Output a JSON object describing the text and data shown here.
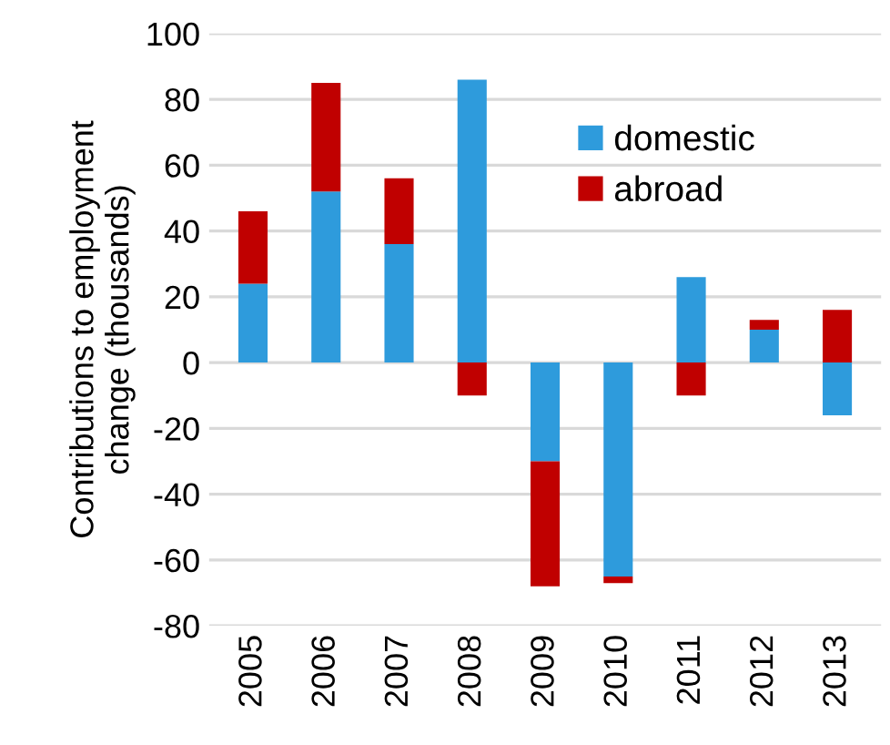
{
  "chart_data": {
    "type": "bar",
    "stacked": true,
    "ylabel": "Contributions to employment\nchange (thousands)",
    "categories": [
      "2005",
      "2006",
      "2007",
      "2008",
      "2009",
      "2010",
      "2011",
      "2012",
      "2013"
    ],
    "series": [
      {
        "name": "domestic",
        "color": "#2e9bdc",
        "values": [
          24,
          52,
          36,
          86,
          -30,
          -65,
          26,
          10,
          -16
        ]
      },
      {
        "name": "abroad",
        "color": "#c00000",
        "values": [
          22,
          33,
          20,
          -10,
          -38,
          -2,
          -10,
          3,
          16
        ]
      }
    ],
    "ylim": [
      -80,
      100
    ],
    "yticks": [
      -80,
      -60,
      -40,
      -20,
      0,
      20,
      40,
      60,
      80,
      100
    ],
    "grid": "y",
    "legend": "top right"
  }
}
